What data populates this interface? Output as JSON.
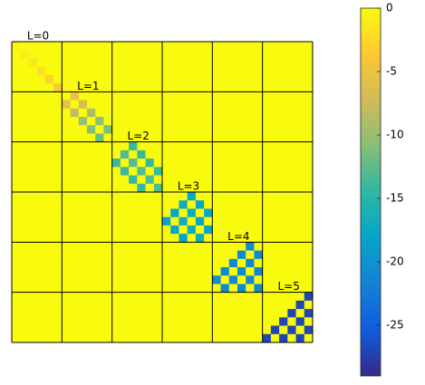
{
  "chart_data": {
    "type": "heatmap",
    "colormap": "parula",
    "clim": [
      -29,
      0
    ],
    "colorbar_ticks": [
      0,
      -5,
      -10,
      -15,
      -20,
      -25
    ],
    "block_labels": [
      "L=0",
      "L=1",
      "L=2",
      "L=3",
      "L=4",
      "L=5"
    ],
    "z": [
      [
        -0.5,
        0,
        0,
        0,
        0,
        0,
        0,
        0,
        0,
        0,
        0,
        0,
        0,
        0,
        0,
        0,
        0,
        0,
        0,
        0,
        0,
        0,
        0,
        0,
        0,
        0,
        0,
        0,
        0,
        0,
        0,
        0,
        0,
        0,
        0,
        0
      ],
      [
        0,
        -1,
        0,
        0,
        0,
        0,
        0,
        0,
        0,
        0,
        0,
        0,
        0,
        0,
        0,
        0,
        0,
        0,
        0,
        0,
        0,
        0,
        0,
        0,
        0,
        0,
        0,
        0,
        0,
        0,
        0,
        0,
        0,
        0,
        0,
        0
      ],
      [
        0,
        0,
        -1.5,
        0,
        0,
        0,
        0,
        0,
        0,
        0,
        0,
        0,
        0,
        0,
        0,
        0,
        0,
        0,
        0,
        0,
        0,
        0,
        0,
        0,
        0,
        0,
        0,
        0,
        0,
        0,
        0,
        0,
        0,
        0,
        0,
        0
      ],
      [
        0,
        0,
        0,
        -2,
        0,
        0,
        0,
        0,
        0,
        0,
        0,
        0,
        0,
        0,
        0,
        0,
        0,
        0,
        0,
        0,
        0,
        0,
        0,
        0,
        0,
        0,
        0,
        0,
        0,
        0,
        0,
        0,
        0,
        0,
        0,
        0
      ],
      [
        0,
        0,
        0,
        0,
        -3,
        0,
        0,
        0,
        0,
        0,
        0,
        0,
        0,
        0,
        0,
        0,
        0,
        0,
        0,
        0,
        0,
        0,
        0,
        0,
        0,
        0,
        0,
        0,
        0,
        0,
        0,
        0,
        0,
        0,
        0,
        0
      ],
      [
        0,
        0,
        0,
        0,
        0,
        -4,
        0,
        0,
        0,
        0,
        0,
        0,
        0,
        0,
        0,
        0,
        0,
        0,
        0,
        0,
        0,
        0,
        0,
        0,
        0,
        0,
        0,
        0,
        0,
        0,
        0,
        0,
        0,
        0,
        0,
        0
      ],
      [
        0,
        0,
        0,
        0,
        0,
        0,
        0,
        -5,
        0,
        0,
        0,
        0,
        0,
        0,
        0,
        0,
        0,
        0,
        0,
        0,
        0,
        0,
        0,
        0,
        0,
        0,
        0,
        0,
        0,
        0,
        0,
        0,
        0,
        0,
        0,
        0
      ],
      [
        0,
        0,
        0,
        0,
        0,
        0,
        -6,
        0,
        -7,
        0,
        0,
        0,
        0,
        0,
        0,
        0,
        0,
        0,
        0,
        0,
        0,
        0,
        0,
        0,
        0,
        0,
        0,
        0,
        0,
        0,
        0,
        0,
        0,
        0,
        0,
        0
      ],
      [
        0,
        0,
        0,
        0,
        0,
        0,
        0,
        -8,
        0,
        -9,
        0,
        0,
        0,
        0,
        0,
        0,
        0,
        0,
        0,
        0,
        0,
        0,
        0,
        0,
        0,
        0,
        0,
        0,
        0,
        0,
        0,
        0,
        0,
        0,
        0,
        0
      ],
      [
        0,
        0,
        0,
        0,
        0,
        0,
        0,
        0,
        -10,
        0,
        -10.5,
        0,
        0,
        0,
        0,
        0,
        0,
        0,
        0,
        0,
        0,
        0,
        0,
        0,
        0,
        0,
        0,
        0,
        0,
        0,
        0,
        0,
        0,
        0,
        0,
        0
      ],
      [
        0,
        0,
        0,
        0,
        0,
        0,
        0,
        0,
        0,
        -11,
        0,
        -11.5,
        0,
        0,
        0,
        0,
        0,
        0,
        0,
        0,
        0,
        0,
        0,
        0,
        0,
        0,
        0,
        0,
        0,
        0,
        0,
        0,
        0,
        0,
        0,
        0
      ],
      [
        0,
        0,
        0,
        0,
        0,
        0,
        0,
        0,
        0,
        0,
        -12,
        0,
        0,
        0,
        0,
        0,
        0,
        0,
        0,
        0,
        0,
        0,
        0,
        0,
        0,
        0,
        0,
        0,
        0,
        0,
        0,
        0,
        0,
        0,
        0,
        0
      ],
      [
        0,
        0,
        0,
        0,
        0,
        0,
        0,
        0,
        0,
        0,
        0,
        0,
        0,
        0,
        -14,
        0,
        0,
        0,
        0,
        0,
        0,
        0,
        0,
        0,
        0,
        0,
        0,
        0,
        0,
        0,
        0,
        0,
        0,
        0,
        0,
        0
      ],
      [
        0,
        0,
        0,
        0,
        0,
        0,
        0,
        0,
        0,
        0,
        0,
        0,
        0,
        -13,
        0,
        -14,
        0,
        0,
        0,
        0,
        0,
        0,
        0,
        0,
        0,
        0,
        0,
        0,
        0,
        0,
        0,
        0,
        0,
        0,
        0,
        0
      ],
      [
        0,
        0,
        0,
        0,
        0,
        0,
        0,
        0,
        0,
        0,
        0,
        0,
        -14,
        0,
        -13,
        0,
        -14,
        0,
        0,
        0,
        0,
        0,
        0,
        0,
        0,
        0,
        0,
        0,
        0,
        0,
        0,
        0,
        0,
        0,
        0,
        0
      ],
      [
        0,
        0,
        0,
        0,
        0,
        0,
        0,
        0,
        0,
        0,
        0,
        0,
        0,
        -14,
        0,
        -13,
        0,
        -14,
        0,
        0,
        0,
        0,
        0,
        0,
        0,
        0,
        0,
        0,
        0,
        0,
        0,
        0,
        0,
        0,
        0,
        0
      ],
      [
        0,
        0,
        0,
        0,
        0,
        0,
        0,
        0,
        0,
        0,
        0,
        0,
        0,
        0,
        -14,
        0,
        -13,
        0,
        0,
        0,
        0,
        0,
        0,
        0,
        0,
        0,
        0,
        0,
        0,
        0,
        0,
        0,
        0,
        0,
        0,
        0
      ],
      [
        0,
        0,
        0,
        0,
        0,
        0,
        0,
        0,
        0,
        0,
        0,
        0,
        0,
        0,
        0,
        -14,
        0,
        -13,
        0,
        0,
        0,
        0,
        0,
        0,
        0,
        0,
        0,
        0,
        0,
        0,
        0,
        0,
        0,
        0,
        0,
        0
      ],
      [
        0,
        0,
        0,
        0,
        0,
        0,
        0,
        0,
        0,
        0,
        0,
        0,
        0,
        0,
        0,
        0,
        0,
        0,
        0,
        0,
        0,
        -18,
        0,
        0,
        0,
        0,
        0,
        0,
        0,
        0,
        0,
        0,
        0,
        0,
        0,
        0
      ],
      [
        0,
        0,
        0,
        0,
        0,
        0,
        0,
        0,
        0,
        0,
        0,
        0,
        0,
        0,
        0,
        0,
        0,
        0,
        0,
        0,
        -17,
        0,
        -18,
        0,
        0,
        0,
        0,
        0,
        0,
        0,
        0,
        0,
        0,
        0,
        0,
        0
      ],
      [
        0,
        0,
        0,
        0,
        0,
        0,
        0,
        0,
        0,
        0,
        0,
        0,
        0,
        0,
        0,
        0,
        0,
        0,
        0,
        -18,
        0,
        -17,
        0,
        -18,
        0,
        0,
        0,
        0,
        0,
        0,
        0,
        0,
        0,
        0,
        0,
        0
      ],
      [
        0,
        0,
        0,
        0,
        0,
        0,
        0,
        0,
        0,
        0,
        0,
        0,
        0,
        0,
        0,
        0,
        0,
        0,
        -18,
        0,
        -17,
        0,
        -18,
        0,
        0,
        0,
        0,
        0,
        0,
        0,
        0,
        0,
        0,
        0,
        0,
        0
      ],
      [
        0,
        0,
        0,
        0,
        0,
        0,
        0,
        0,
        0,
        0,
        0,
        0,
        0,
        0,
        0,
        0,
        0,
        0,
        0,
        -18,
        0,
        -17,
        0,
        -18,
        0,
        0,
        0,
        0,
        0,
        0,
        0,
        0,
        0,
        0,
        0,
        0
      ],
      [
        0,
        0,
        0,
        0,
        0,
        0,
        0,
        0,
        0,
        0,
        0,
        0,
        0,
        0,
        0,
        0,
        0,
        0,
        0,
        0,
        -18,
        0,
        -17,
        0,
        0,
        0,
        0,
        0,
        0,
        0,
        0,
        0,
        0,
        0,
        0,
        0
      ],
      [
        0,
        0,
        0,
        0,
        0,
        0,
        0,
        0,
        0,
        0,
        0,
        0,
        0,
        0,
        0,
        0,
        0,
        0,
        0,
        0,
        0,
        0,
        0,
        0,
        0,
        0,
        0,
        0,
        -21,
        0,
        0,
        0,
        0,
        0,
        0,
        0
      ],
      [
        0,
        0,
        0,
        0,
        0,
        0,
        0,
        0,
        0,
        0,
        0,
        0,
        0,
        0,
        0,
        0,
        0,
        0,
        0,
        0,
        0,
        0,
        0,
        0,
        0,
        0,
        0,
        -21,
        0,
        -21,
        0,
        0,
        0,
        0,
        0,
        0
      ],
      [
        0,
        0,
        0,
        0,
        0,
        0,
        0,
        0,
        0,
        0,
        0,
        0,
        0,
        0,
        0,
        0,
        0,
        0,
        0,
        0,
        0,
        0,
        0,
        0,
        0,
        0,
        -21,
        0,
        -21,
        0,
        0,
        0,
        0,
        0,
        0,
        0
      ],
      [
        0,
        0,
        0,
        0,
        0,
        0,
        0,
        0,
        0,
        0,
        0,
        0,
        0,
        0,
        0,
        0,
        0,
        0,
        0,
        0,
        0,
        0,
        0,
        0,
        0,
        -21,
        0,
        -21,
        0,
        -21,
        0,
        0,
        0,
        0,
        0,
        0
      ],
      [
        0,
        0,
        0,
        0,
        0,
        0,
        0,
        0,
        0,
        0,
        0,
        0,
        0,
        0,
        0,
        0,
        0,
        0,
        0,
        0,
        0,
        0,
        0,
        0,
        -21,
        0,
        -21,
        0,
        -21,
        0,
        0,
        0,
        0,
        0,
        0,
        0
      ],
      [
        0,
        0,
        0,
        0,
        0,
        0,
        0,
        0,
        0,
        0,
        0,
        0,
        0,
        0,
        0,
        0,
        0,
        0,
        0,
        0,
        0,
        0,
        0,
        0,
        0,
        -21,
        0,
        -21,
        0,
        -21,
        0,
        0,
        0,
        0,
        0,
        0
      ],
      [
        0,
        0,
        0,
        0,
        0,
        0,
        0,
        0,
        0,
        0,
        0,
        0,
        0,
        0,
        0,
        0,
        0,
        0,
        0,
        0,
        0,
        0,
        0,
        0,
        0,
        0,
        0,
        0,
        0,
        0,
        0,
        0,
        0,
        0,
        0,
        -27
      ],
      [
        0,
        0,
        0,
        0,
        0,
        0,
        0,
        0,
        0,
        0,
        0,
        0,
        0,
        0,
        0,
        0,
        0,
        0,
        0,
        0,
        0,
        0,
        0,
        0,
        0,
        0,
        0,
        0,
        0,
        0,
        0,
        0,
        0,
        0,
        -27,
        0
      ],
      [
        0,
        0,
        0,
        0,
        0,
        0,
        0,
        0,
        0,
        0,
        0,
        0,
        0,
        0,
        0,
        0,
        0,
        0,
        0,
        0,
        0,
        0,
        0,
        0,
        0,
        0,
        0,
        0,
        0,
        0,
        0,
        0,
        0,
        -27,
        0,
        -27
      ],
      [
        0,
        0,
        0,
        0,
        0,
        0,
        0,
        0,
        0,
        0,
        0,
        0,
        0,
        0,
        0,
        0,
        0,
        0,
        0,
        0,
        0,
        0,
        0,
        0,
        0,
        0,
        0,
        0,
        0,
        0,
        0,
        0,
        -27,
        0,
        -27,
        0
      ],
      [
        0,
        0,
        0,
        0,
        0,
        0,
        0,
        0,
        0,
        0,
        0,
        0,
        0,
        0,
        0,
        0,
        0,
        0,
        0,
        0,
        0,
        0,
        0,
        0,
        0,
        0,
        0,
        0,
        0,
        0,
        0,
        -27,
        0,
        -27,
        0,
        -27
      ],
      [
        0,
        0,
        0,
        0,
        0,
        0,
        0,
        0,
        0,
        0,
        0,
        0,
        0,
        0,
        0,
        0,
        0,
        0,
        0,
        0,
        0,
        0,
        0,
        0,
        0,
        0,
        0,
        0,
        0,
        0,
        -27,
        0,
        -27,
        0,
        -27,
        0
      ]
    ]
  }
}
